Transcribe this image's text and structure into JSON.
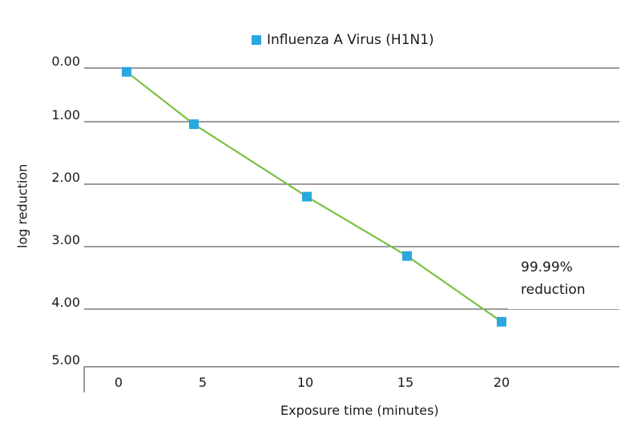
{
  "chart_data": {
    "type": "line",
    "title": "",
    "xlabel": "Exposure time (minutes)",
    "ylabel": "log reduction",
    "x_ticks": [
      0,
      5,
      10,
      15,
      20
    ],
    "y_ticks": [
      "0.00",
      "1.00",
      "2.00",
      "3.00",
      "4.00",
      "5.00"
    ],
    "ylim": [
      0,
      5
    ],
    "y_inverted": true,
    "grid": "horizontal",
    "legend_position": "top-center",
    "series": [
      {
        "name": "Influenza A Virus (H1N1)",
        "line_color": "#7bc142",
        "marker_color": "#29a8e0",
        "x": [
          0,
          5,
          10,
          15,
          20
        ],
        "y": [
          0.07,
          1.04,
          2.2,
          3.15,
          4.22
        ]
      }
    ],
    "annotation": {
      "line1": "99.99%",
      "line2": "reduction"
    }
  }
}
